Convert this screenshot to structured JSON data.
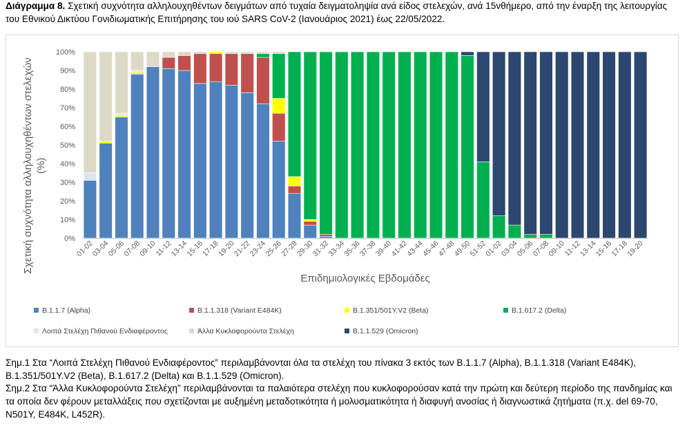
{
  "caption": {
    "label": "Διάγραμμα 8.",
    "text": " Σχετική συχνότητα αλληλουχηθέντων δειγμάτων από τυχαία δειγματοληψία ανά είδος στελεχών, ανά 15νθήμερο, από την έναρξη της λειτουργίας του Εθνικού Δικτύου Γονιδιωματικής Επιτήρησης του ιού SARS CoV-2 (Ιανουάριος 2021) έως 22/05/2022."
  },
  "notes": [
    "Σημ.1 Στα “Λοιπά Στελέχη Πιθανού Ενδιαφέροντος” περιλαμβάνονται όλα τα στελέχη του πίνακα 3 εκτός των B.1.1.7 (Alpha), B.1.1.318 (Variant E484K), B.1.351/501Y.V2 (Beta), B.1.617.2 (Delta) και B.1.1.529 (Omicron).",
    "Σημ.2 Στα “Άλλα Κυκλοφορούντα Στελέχη” περιλαμβάνονται τα παλαιότερα στελέχη που κυκλοφορούσαν κατά την πρώτη και δεύτερη περίοδο της πανδημίας και τα οποία δεν φέρουν μεταλλάξεις που σχετίζονται με αυξημένη μεταδοτικότητα ή μολυσματικότητα ή διαφυγή ανοσίας ή διαγνωστικά ζητήματα (π.χ. del 69-70, N501Y, E484K, L452R)."
  ],
  "chart_data": {
    "type": "bar",
    "stacked": true,
    "xlabel": "Επιδημιολογικές Εβδομάδες",
    "ylabel": "Σχετική συχνότητα αλληλουχηθέντων στελεχών (%)",
    "ylim": [
      0,
      100
    ],
    "yticks": [
      "0%",
      "10%",
      "20%",
      "30%",
      "40%",
      "50%",
      "60%",
      "70%",
      "80%",
      "90%",
      "100%"
    ],
    "grid": false,
    "legend_position": "bottom",
    "categories": [
      "01-02",
      "03-04",
      "05-06",
      "07-08",
      "09-10",
      "11-12",
      "13-14",
      "15-16",
      "17-18",
      "19-20",
      "21-22",
      "23-24",
      "25-26",
      "27-28",
      "29-30",
      "31-32",
      "33-34",
      "35-36",
      "37-38",
      "39-40",
      "41-42",
      "43-44",
      "45-46",
      "47-48",
      "49-50",
      "51-52",
      "01-02",
      "03-04",
      "05-06",
      "07-08",
      "09-10",
      "11-12",
      "13-14",
      "15-16",
      "17-18",
      "19-20"
    ],
    "series": [
      {
        "name": "B.1.1.7 (Alpha)",
        "color": "#4f81bd",
        "values": [
          31,
          51,
          65,
          88,
          92,
          91,
          90,
          83,
          84,
          82,
          78,
          72,
          52,
          24,
          7,
          1,
          0,
          0,
          0,
          0,
          0,
          0,
          0,
          0,
          0,
          0,
          0,
          0,
          0,
          0,
          0,
          0,
          0,
          0,
          0,
          0
        ]
      },
      {
        "name": "B.1.1.318 (Variant E484K)",
        "color": "#c0504d",
        "values": [
          0,
          0,
          0,
          0,
          0,
          6,
          8,
          16,
          15,
          17,
          21,
          25,
          15,
          4,
          2,
          1,
          0,
          0,
          0,
          0,
          0,
          0,
          0,
          0,
          0,
          0,
          0,
          0,
          0,
          0,
          0,
          0,
          0,
          0,
          0,
          0
        ]
      },
      {
        "name": "B.1.351/501Y.V2 (Beta)",
        "color": "#ffff00",
        "values": [
          0,
          1,
          1,
          1,
          0,
          0,
          0,
          0,
          1,
          0,
          0,
          0,
          8,
          5,
          1,
          0,
          0,
          0,
          0,
          0,
          0,
          0,
          0,
          0,
          0,
          0,
          0,
          0,
          0,
          0,
          0,
          0,
          0,
          0,
          0,
          0
        ]
      },
      {
        "name": "B.1.617.2 (Delta)",
        "color": "#00b050",
        "values": [
          0,
          0,
          0,
          0,
          0,
          0,
          0,
          0,
          0,
          0,
          0,
          2,
          24,
          67,
          90,
          98,
          100,
          100,
          100,
          100,
          100,
          100,
          100,
          100,
          98,
          41,
          12,
          7,
          2,
          2,
          0,
          0,
          0,
          0,
          0,
          0
        ]
      },
      {
        "name": "Λοιπά Στελέχη Πιθανού Ενδιαφέροντος",
        "color": "#dce6f1",
        "values": [
          4,
          0,
          1,
          1,
          0,
          0,
          0,
          0,
          0,
          0,
          0,
          0,
          0,
          0,
          0,
          0,
          0,
          0,
          0,
          0,
          0,
          0,
          0,
          0,
          0,
          0,
          0,
          0,
          0,
          0,
          0,
          0,
          0,
          0,
          0,
          0
        ]
      },
      {
        "name": "Άλλα Κυκλοφορούντα Στελέχη",
        "color": "#ddd9c4",
        "values": [
          65,
          48,
          33,
          10,
          8,
          3,
          2,
          1,
          0,
          1,
          1,
          1,
          1,
          0,
          0,
          0,
          0,
          0,
          0,
          0,
          0,
          0,
          0,
          0,
          0,
          0,
          0,
          0,
          0,
          0,
          0,
          0,
          0,
          0,
          0,
          0
        ]
      },
      {
        "name": "B.1.1.529 (Omicron)",
        "color": "#2c4770",
        "values": [
          0,
          0,
          0,
          0,
          0,
          0,
          0,
          0,
          0,
          0,
          0,
          0,
          0,
          0,
          0,
          0,
          0,
          0,
          0,
          0,
          0,
          0,
          0,
          0,
          2,
          59,
          88,
          93,
          98,
          98,
          100,
          100,
          100,
          100,
          100,
          100
        ]
      }
    ],
    "legend_order": [
      "B.1.1.7 (Alpha)",
      "B.1.1.318 (Variant E484K)",
      "B.1.351/501Y.V2 (Beta)",
      "B.1.617.2 (Delta)",
      "Λοιπά Στελέχη Πιθανού Ενδιαφέροντος",
      "Άλλα Κυκλοφορούντα Στελέχη",
      "B.1.1.529 (Omicron)"
    ]
  }
}
